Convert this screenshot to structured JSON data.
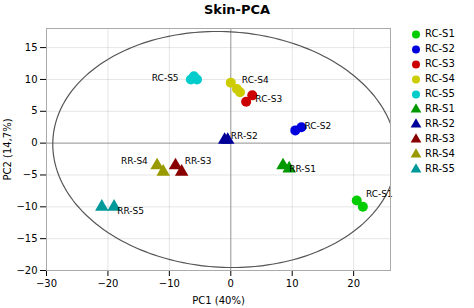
{
  "chart_data": {
    "type": "scatter",
    "title": "Skin-PCA",
    "xlabel": "PC1 (40%)",
    "ylabel": "PC2 (14,7%)",
    "xlim": [
      -30,
      26
    ],
    "ylim": [
      -20,
      18
    ],
    "xticks": [
      -30,
      -20,
      -10,
      0,
      10,
      20
    ],
    "yticks": [
      -20,
      -15,
      -10,
      -5,
      0,
      5,
      10,
      15
    ],
    "grid": true,
    "legend": "upper right",
    "series": [
      {
        "name": "RC-S1",
        "color": "#00cc00",
        "marker": "circle",
        "x": [
          20.5,
          21.5
        ],
        "y": [
          -9.0,
          -10.0
        ]
      },
      {
        "name": "RC-S2",
        "color": "#0000dd",
        "marker": "circle",
        "x": [
          10.5,
          11.5
        ],
        "y": [
          2.0,
          2.5
        ]
      },
      {
        "name": "RC-S3",
        "color": "#cc0000",
        "marker": "circle",
        "x": [
          2.5,
          3.5
        ],
        "y": [
          6.5,
          7.5
        ]
      },
      {
        "name": "RC-S4",
        "color": "#cccc00",
        "marker": "circle",
        "x": [
          0.0,
          1.0,
          1.5
        ],
        "y": [
          9.5,
          8.5,
          8.0
        ]
      },
      {
        "name": "RC-S5",
        "color": "#00cccc",
        "marker": "circle",
        "x": [
          -6.5,
          -6.0,
          -5.5
        ],
        "y": [
          10.0,
          10.5,
          10.0
        ]
      },
      {
        "name": "RR-S1",
        "color": "#009900",
        "marker": "triangle",
        "x": [
          8.5,
          9.5
        ],
        "y": [
          -3.5,
          -4.0
        ]
      },
      {
        "name": "RR-S2",
        "color": "#000099",
        "marker": "triangle",
        "x": [
          -1.0,
          -0.5
        ],
        "y": [
          0.5,
          0.5
        ]
      },
      {
        "name": "RR-S3",
        "color": "#880000",
        "marker": "triangle",
        "x": [
          -9.0,
          -8.0
        ],
        "y": [
          -3.5,
          -4.5
        ]
      },
      {
        "name": "RR-S4",
        "color": "#999900",
        "marker": "triangle",
        "x": [
          -12.0,
          -11.0
        ],
        "y": [
          -3.5,
          -4.5
        ]
      },
      {
        "name": "RR-S5",
        "color": "#009999",
        "marker": "triangle",
        "x": [
          -21.0,
          -19.0
        ],
        "y": [
          -10.0,
          -10.0
        ]
      }
    ],
    "annotations": [
      {
        "text": "RC-S1",
        "x": 22.0,
        "y": -8.5
      },
      {
        "text": "RC-S2",
        "x": 12.0,
        "y": 2.2
      },
      {
        "text": "RC-S3",
        "x": 4.0,
        "y": 6.5
      },
      {
        "text": "RC-S4",
        "x": 1.8,
        "y": 9.5
      },
      {
        "text": "RC-S5",
        "x": -8.5,
        "y": 9.8
      },
      {
        "text": "RR-S1",
        "x": 9.5,
        "y": -4.5
      },
      {
        "text": "RR-S2",
        "x": 0.0,
        "y": 0.7
      },
      {
        "text": "RR-S3",
        "x": -7.5,
        "y": -3.3
      },
      {
        "text": "RR-S4",
        "x": -13.5,
        "y": -3.2
      },
      {
        "text": "RR-S5",
        "x": -18.5,
        "y": -11.2
      }
    ],
    "ellipse": {
      "center": [
        -1.0,
        -1.0
      ],
      "width": 56,
      "height": 37,
      "angle": -3
    },
    "crosshair": {
      "x": 0,
      "y": 0
    }
  }
}
